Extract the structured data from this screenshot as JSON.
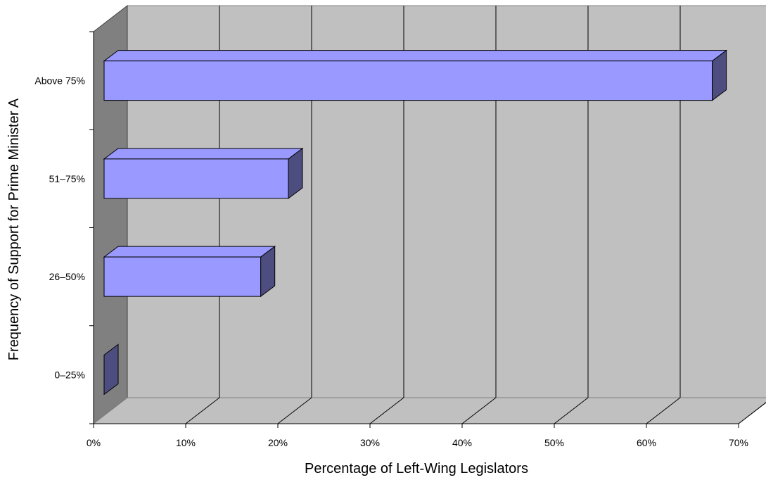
{
  "chart_data": {
    "type": "bar",
    "orientation": "horizontal",
    "three_d": true,
    "categories": [
      "0–25%",
      "26–50%",
      "51–75%",
      "Above 75%"
    ],
    "values": [
      0,
      17,
      20,
      66
    ],
    "xlabel": "Percentage of Left-Wing Legislators",
    "ylabel": "Frequency of Support for Prime Minister A",
    "xlim": [
      0,
      70
    ],
    "xticks": [
      "0%",
      "10%",
      "20%",
      "30%",
      "40%",
      "50%",
      "60%",
      "70%"
    ],
    "grid": true,
    "legend": "none",
    "colors": {
      "bar_front": "#9999ff",
      "bar_side": "#4d4d80",
      "wall_back": "#c0c0c0",
      "wall_side": "#808080",
      "floor": "#c0c0c0"
    }
  }
}
